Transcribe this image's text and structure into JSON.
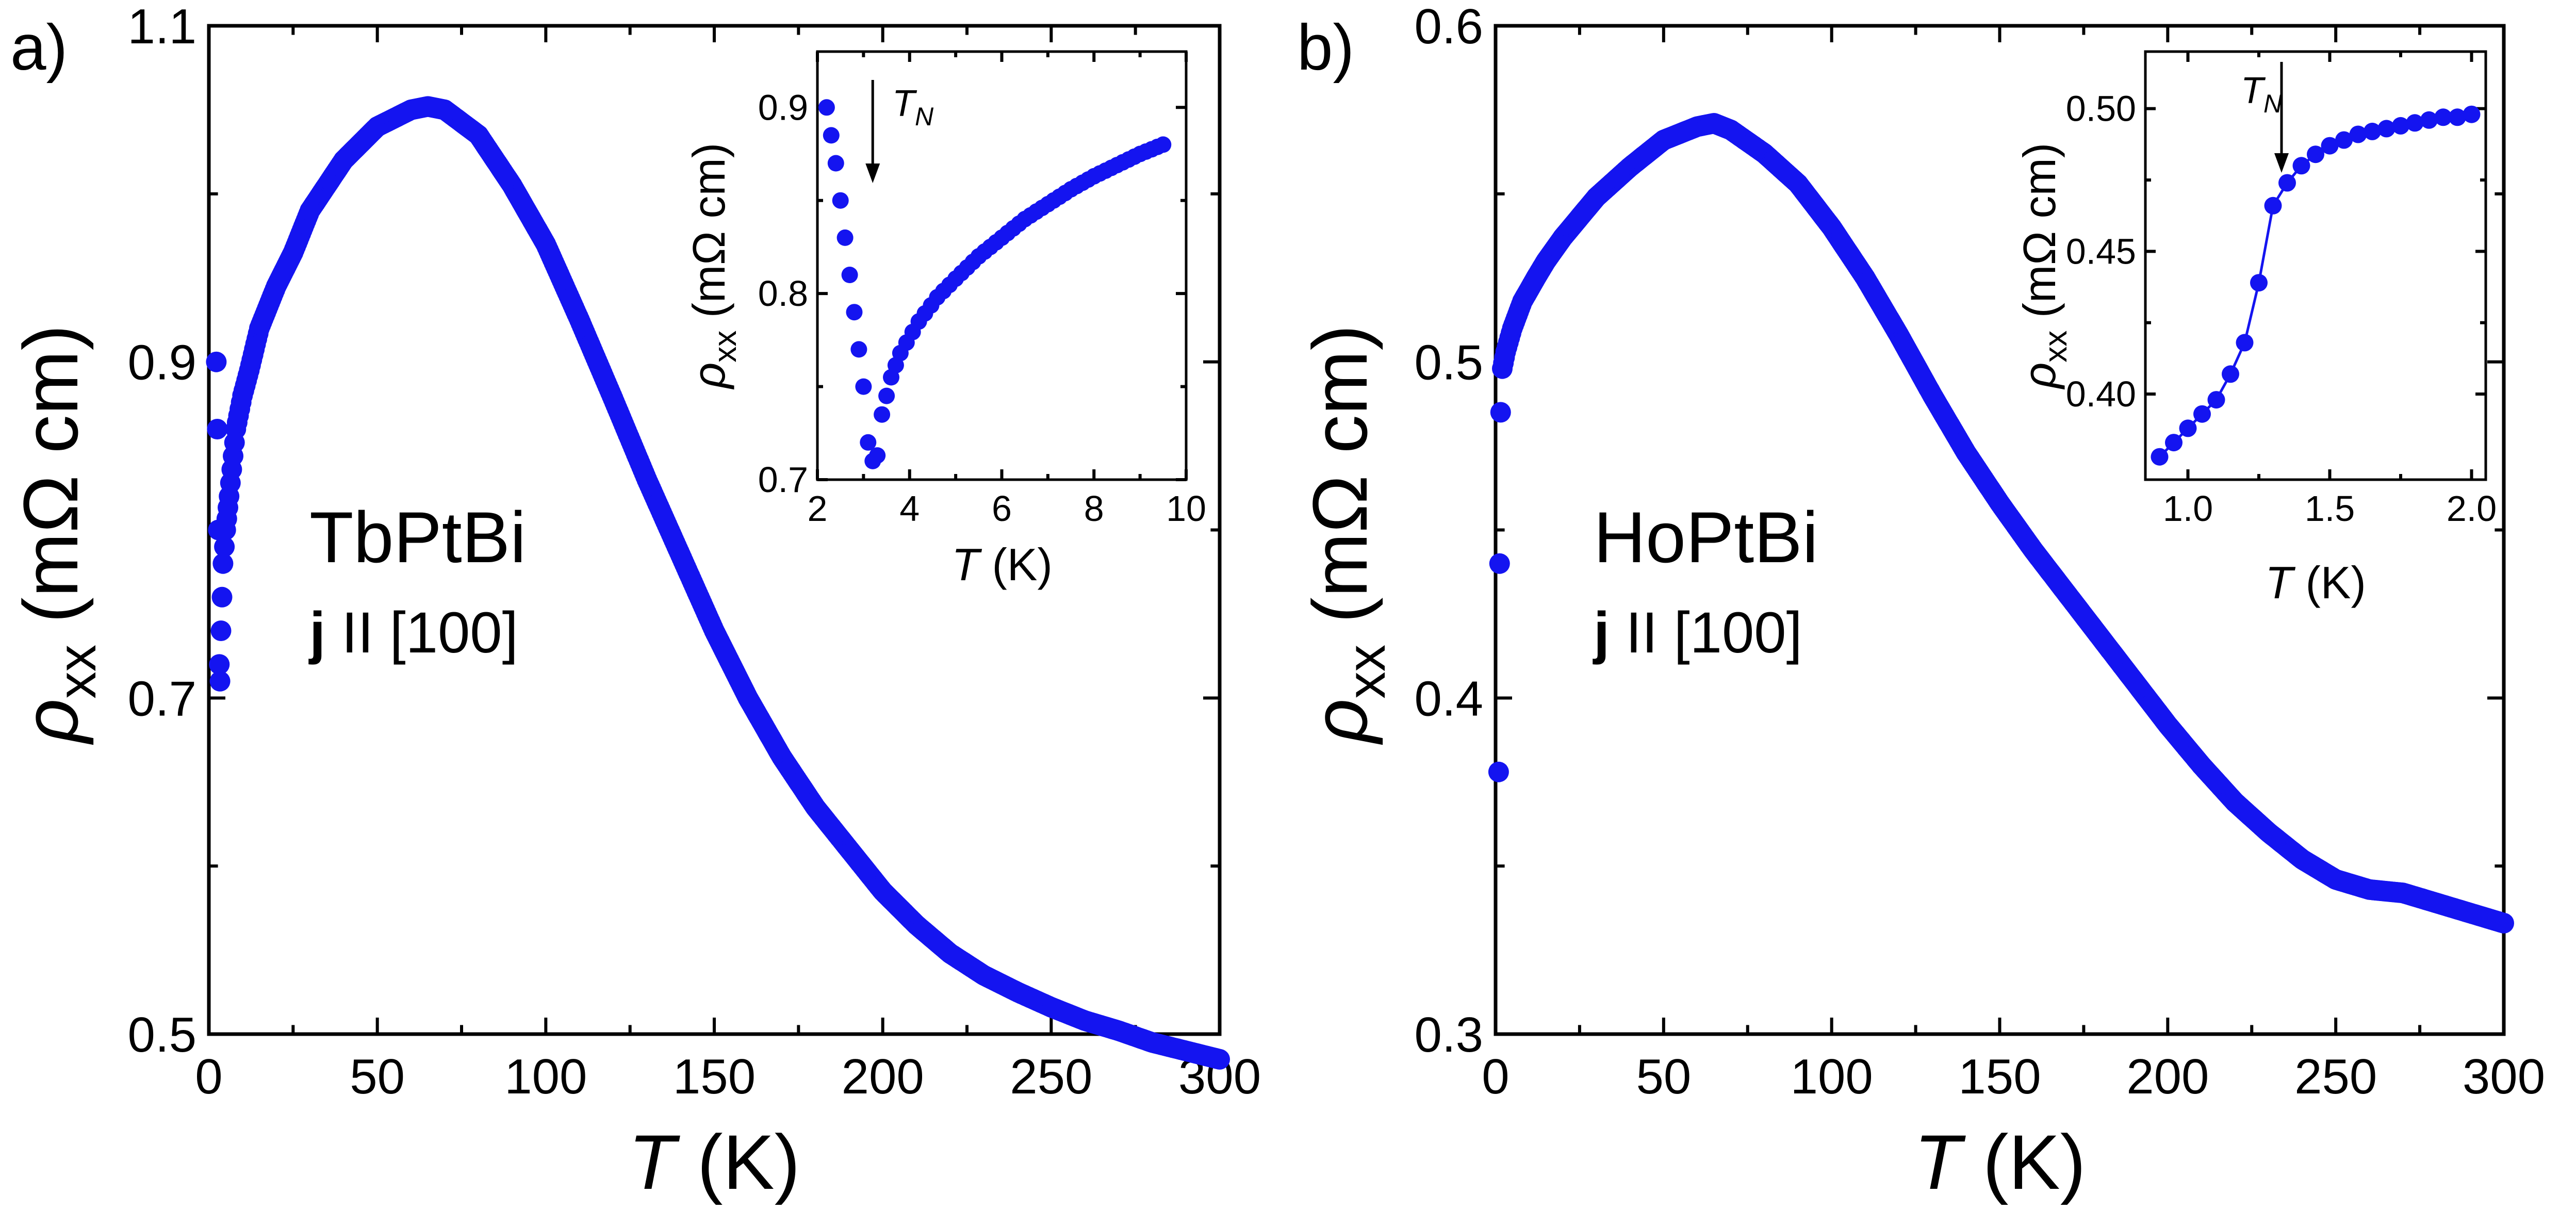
{
  "colors": {
    "series": "#1414f0",
    "axes": "#000000",
    "background": "#ffffff"
  },
  "chart_data": [
    {
      "type": "scatter",
      "panel_label": "a)",
      "sample": "TbPtBi",
      "direction": {
        "bold": "j",
        "rest": " II [100]"
      },
      "xlabel": {
        "sym": "T",
        "unit": " (K)"
      },
      "ylabel": {
        "sym": "ρ",
        "sub": "xx",
        "unit": " (mΩ cm)"
      },
      "xlim": [
        0,
        300
      ],
      "ylim": [
        0.5,
        1.1
      ],
      "xticks": [
        "0",
        "50",
        "100",
        "150",
        "200",
        "250",
        "300"
      ],
      "yticks": [
        "0.5",
        "0.7",
        "0.9",
        "1.1"
      ],
      "series": [
        {
          "name": "TbPtBi j II [100]",
          "curve": [
            [
              2.2,
              0.9
            ],
            [
              2.5,
              0.86
            ],
            [
              2.8,
              0.8
            ],
            [
              3.1,
              0.72
            ],
            [
              3.3,
              0.71
            ],
            [
              3.6,
              0.74
            ],
            [
              4.2,
              0.78
            ],
            [
              5,
              0.8
            ],
            [
              6,
              0.82
            ],
            [
              8,
              0.86
            ],
            [
              10,
              0.88
            ],
            [
              12,
              0.895
            ],
            [
              15,
              0.92
            ],
            [
              20,
              0.945
            ],
            [
              25,
              0.965
            ],
            [
              30,
              0.99
            ],
            [
              40,
              1.02
            ],
            [
              50,
              1.04
            ],
            [
              60,
              1.05
            ],
            [
              65,
              1.052
            ],
            [
              70,
              1.05
            ],
            [
              80,
              1.035
            ],
            [
              90,
              1.005
            ],
            [
              100,
              0.97
            ],
            [
              110,
              0.925
            ],
            [
              120,
              0.878
            ],
            [
              130,
              0.83
            ],
            [
              140,
              0.785
            ],
            [
              150,
              0.74
            ],
            [
              160,
              0.7
            ],
            [
              170,
              0.665
            ],
            [
              180,
              0.635
            ],
            [
              190,
              0.61
            ],
            [
              200,
              0.585
            ],
            [
              210,
              0.565
            ],
            [
              220,
              0.548
            ],
            [
              230,
              0.535
            ],
            [
              240,
              0.525
            ],
            [
              250,
              0.516
            ],
            [
              260,
              0.508
            ],
            [
              270,
              0.502
            ],
            [
              280,
              0.495
            ],
            [
              290,
              0.49
            ],
            [
              300,
              0.485
            ]
          ]
        }
      ],
      "inset": {
        "xlabel": {
          "sym": "T",
          "unit": " (K)"
        },
        "ylabel": {
          "sym": "ρ",
          "sub": "xx",
          "unit": " (mΩ cm)"
        },
        "xlim": [
          2,
          10
        ],
        "ylim": [
          0.7,
          0.93
        ],
        "xticks": [
          "2",
          "4",
          "6",
          "8",
          "10"
        ],
        "yticks": [
          "0.7",
          "0.8",
          "0.9"
        ],
        "annotation": {
          "sym": "T",
          "sub": "N",
          "x": 3.2
        },
        "curve": [
          [
            2.2,
            0.9
          ],
          [
            2.4,
            0.87
          ],
          [
            2.6,
            0.83
          ],
          [
            2.8,
            0.79
          ],
          [
            3.0,
            0.75
          ],
          [
            3.1,
            0.72
          ],
          [
            3.2,
            0.71
          ],
          [
            3.3,
            0.713
          ],
          [
            3.4,
            0.735
          ],
          [
            3.6,
            0.755
          ],
          [
            3.8,
            0.768
          ],
          [
            4.2,
            0.785
          ],
          [
            4.6,
            0.798
          ],
          [
            5,
            0.808
          ],
          [
            5.5,
            0.82
          ],
          [
            6,
            0.83
          ],
          [
            6.5,
            0.84
          ],
          [
            7,
            0.848
          ],
          [
            7.5,
            0.856
          ],
          [
            8,
            0.863
          ],
          [
            8.5,
            0.869
          ],
          [
            9,
            0.875
          ],
          [
            9.5,
            0.88
          ]
        ]
      }
    },
    {
      "type": "scatter",
      "panel_label": "b)",
      "sample": "HoPtBi",
      "direction": {
        "bold": "j",
        "rest": " II [100]"
      },
      "xlabel": {
        "sym": "T",
        "unit": " (K)"
      },
      "ylabel": {
        "sym": "ρ",
        "sub": "xx",
        "unit": " (mΩ cm)"
      },
      "xlim": [
        0,
        300
      ],
      "ylim": [
        0.3,
        0.6
      ],
      "xticks": [
        "0",
        "50",
        "100",
        "150",
        "200",
        "250",
        "300"
      ],
      "yticks": [
        "0.3",
        "0.4",
        "0.5",
        "0.6"
      ],
      "series": [
        {
          "name": "HoPtBi j II [100]",
          "curve": [
            [
              0.9,
              0.378
            ],
            [
              1.2,
              0.44
            ],
            [
              1.5,
              0.485
            ],
            [
              2,
              0.498
            ],
            [
              3,
              0.503
            ],
            [
              5,
              0.51
            ],
            [
              8,
              0.518
            ],
            [
              12,
              0.525
            ],
            [
              15,
              0.53
            ],
            [
              20,
              0.537
            ],
            [
              25,
              0.543
            ],
            [
              30,
              0.549
            ],
            [
              40,
              0.558
            ],
            [
              50,
              0.566
            ],
            [
              60,
              0.57
            ],
            [
              65,
              0.571
            ],
            [
              70,
              0.569
            ],
            [
              80,
              0.562
            ],
            [
              90,
              0.553
            ],
            [
              100,
              0.54
            ],
            [
              110,
              0.525
            ],
            [
              120,
              0.508
            ],
            [
              130,
              0.49
            ],
            [
              140,
              0.473
            ],
            [
              150,
              0.458
            ],
            [
              160,
              0.444
            ],
            [
              170,
              0.431
            ],
            [
              180,
              0.418
            ],
            [
              190,
              0.405
            ],
            [
              200,
              0.392
            ],
            [
              210,
              0.38
            ],
            [
              220,
              0.369
            ],
            [
              230,
              0.36
            ],
            [
              240,
              0.352
            ],
            [
              250,
              0.346
            ],
            [
              260,
              0.343
            ],
            [
              270,
              0.342
            ],
            [
              280,
              0.339
            ],
            [
              290,
              0.336
            ],
            [
              300,
              0.333
            ]
          ]
        }
      ],
      "inset": {
        "xlabel": {
          "sym": "T",
          "unit": " (K)"
        },
        "ylabel": {
          "sym": "ρ",
          "sub": "xx",
          "unit": " (mΩ cm)"
        },
        "xlim": [
          0.85,
          2.05
        ],
        "ylim": [
          0.37,
          0.52
        ],
        "xticks": [
          "1.0",
          "1.5",
          "2.0"
        ],
        "yticks": [
          "0.40",
          "0.45",
          "0.50"
        ],
        "annotation": {
          "sym": "T",
          "sub": "N",
          "x": 1.33
        },
        "curve": [
          [
            0.9,
            0.378
          ],
          [
            0.95,
            0.383
          ],
          [
            1.0,
            0.388
          ],
          [
            1.05,
            0.393
          ],
          [
            1.1,
            0.398
          ],
          [
            1.15,
            0.407
          ],
          [
            1.2,
            0.418
          ],
          [
            1.25,
            0.439
          ],
          [
            1.3,
            0.466
          ],
          [
            1.35,
            0.474
          ],
          [
            1.4,
            0.48
          ],
          [
            1.45,
            0.484
          ],
          [
            1.5,
            0.487
          ],
          [
            1.55,
            0.489
          ],
          [
            1.6,
            0.491
          ],
          [
            1.65,
            0.492
          ],
          [
            1.7,
            0.493
          ],
          [
            1.75,
            0.494
          ],
          [
            1.8,
            0.495
          ],
          [
            1.85,
            0.496
          ],
          [
            1.9,
            0.497
          ],
          [
            1.95,
            0.497
          ],
          [
            2.0,
            0.498
          ]
        ]
      }
    }
  ]
}
